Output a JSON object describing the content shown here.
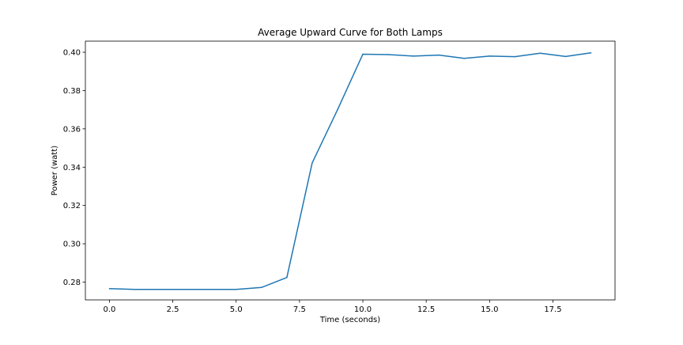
{
  "chart_data": {
    "type": "line",
    "title": "Average Upward Curve for Both Lamps",
    "xlabel": "Time (seconds)",
    "ylabel": "Power (watt)",
    "xlim": [
      -0.95,
      19.95
    ],
    "ylim": [
      0.2707,
      0.4058
    ],
    "xticks": [
      0.0,
      2.5,
      5.0,
      7.5,
      10.0,
      12.5,
      15.0,
      17.5
    ],
    "xtick_labels": [
      "0.0",
      "2.5",
      "5.0",
      "7.5",
      "10.0",
      "12.5",
      "15.0",
      "17.5"
    ],
    "yticks": [
      0.28,
      0.3,
      0.32,
      0.34,
      0.36,
      0.38,
      0.4
    ],
    "ytick_labels": [
      "0.28",
      "0.30",
      "0.32",
      "0.34",
      "0.36",
      "0.38",
      "0.40"
    ],
    "grid": false,
    "series": [
      {
        "color": "#1f77b4",
        "x": [
          0,
          1,
          2,
          3,
          4,
          5,
          6,
          7,
          8,
          9,
          10,
          11,
          12,
          13,
          14,
          15,
          16,
          17,
          18,
          19
        ],
        "y": [
          0.2766,
          0.2762,
          0.2762,
          0.2762,
          0.2762,
          0.2762,
          0.2772,
          0.2824,
          0.3422,
          0.37,
          0.399,
          0.3988,
          0.398,
          0.3985,
          0.3968,
          0.398,
          0.3977,
          0.3995,
          0.3978,
          0.3997
        ]
      }
    ]
  }
}
